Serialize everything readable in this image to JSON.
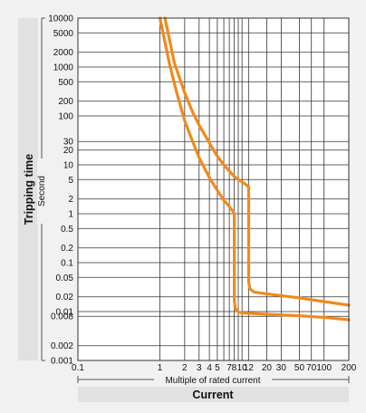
{
  "chart_data": {
    "type": "line",
    "xlabel_top": "Multiple of rated current",
    "xlabel": "Current",
    "ylabel": "Tripping time",
    "ylabel_unit": "Second",
    "x_scale": "log",
    "y_scale": "log",
    "xlim": [
      0.1,
      200
    ],
    "ylim": [
      0.001,
      10000
    ],
    "grid": true,
    "x_ticks": [
      {
        "v": 0.1,
        "label": "0.1"
      },
      {
        "v": 1,
        "label": "1"
      },
      {
        "v": 2,
        "label": "2"
      },
      {
        "v": 3,
        "label": "3"
      },
      {
        "v": 4,
        "label": "4"
      },
      {
        "v": 5,
        "label": "5"
      },
      {
        "v": 7,
        "label": "7"
      },
      {
        "v": 8,
        "label": "8"
      },
      {
        "v": 10,
        "label": "10"
      },
      {
        "v": 12,
        "label": "12"
      },
      {
        "v": 20,
        "label": "20"
      },
      {
        "v": 30,
        "label": "30"
      },
      {
        "v": 50,
        "label": "50"
      },
      {
        "v": 70,
        "label": "70"
      },
      {
        "v": 100,
        "label": "100"
      },
      {
        "v": 200,
        "label": "200"
      }
    ],
    "x_gridlines": [
      1,
      2,
      3,
      4,
      5,
      6,
      7,
      8,
      9,
      10,
      12,
      20,
      30,
      50,
      70,
      100
    ],
    "y_ticks": [
      {
        "v": 10000,
        "label": "10000"
      },
      {
        "v": 5000,
        "label": "5000"
      },
      {
        "v": 2000,
        "label": "2000"
      },
      {
        "v": 1000,
        "label": "1000"
      },
      {
        "v": 500,
        "label": "500"
      },
      {
        "v": 200,
        "label": "200"
      },
      {
        "v": 100,
        "label": "100"
      },
      {
        "v": 30,
        "label": "30"
      },
      {
        "v": 20,
        "label": "20"
      },
      {
        "v": 10,
        "label": "10"
      },
      {
        "v": 5,
        "label": "5"
      },
      {
        "v": 2,
        "label": "2"
      },
      {
        "v": 1,
        "label": "1"
      },
      {
        "v": 0.5,
        "label": "0.5"
      },
      {
        "v": 0.2,
        "label": "0.2"
      },
      {
        "v": 0.1,
        "label": "0.1"
      },
      {
        "v": 0.05,
        "label": "0.05"
      },
      {
        "v": 0.02,
        "label": "0.02"
      },
      {
        "v": 0.01,
        "label": "0.01"
      },
      {
        "v": 0.008,
        "label": "0.008"
      },
      {
        "v": 0.002,
        "label": "0.002"
      },
      {
        "v": 0.001,
        "label": "0.001"
      }
    ],
    "series": [
      {
        "color": "#f08a1c",
        "x": [
          1,
          1.3,
          1.6,
          2,
          2.5,
          3,
          4,
          5,
          6,
          7,
          8,
          8.05,
          8.05,
          8.3,
          9,
          10,
          20,
          50,
          100,
          200
        ],
        "y": [
          10000,
          1200,
          300,
          80,
          30,
          14,
          5.5,
          3.0,
          1.9,
          1.4,
          1.05,
          1.0,
          0.017,
          0.0115,
          0.0098,
          0.0094,
          0.0088,
          0.0082,
          0.0076,
          0.0068
        ]
      },
      {
        "color": "#f08a1c",
        "x": [
          1.15,
          1.5,
          2,
          2.5,
          3,
          4,
          5,
          6,
          7,
          8,
          10,
          12,
          12.05,
          12.05,
          12.5,
          14,
          20,
          50,
          100,
          200
        ],
        "y": [
          10000,
          1200,
          300,
          120,
          65,
          28,
          15,
          10,
          7.5,
          5.8,
          4.5,
          3.6,
          3.5,
          0.04,
          0.029,
          0.025,
          0.023,
          0.019,
          0.016,
          0.0135
        ]
      }
    ]
  }
}
